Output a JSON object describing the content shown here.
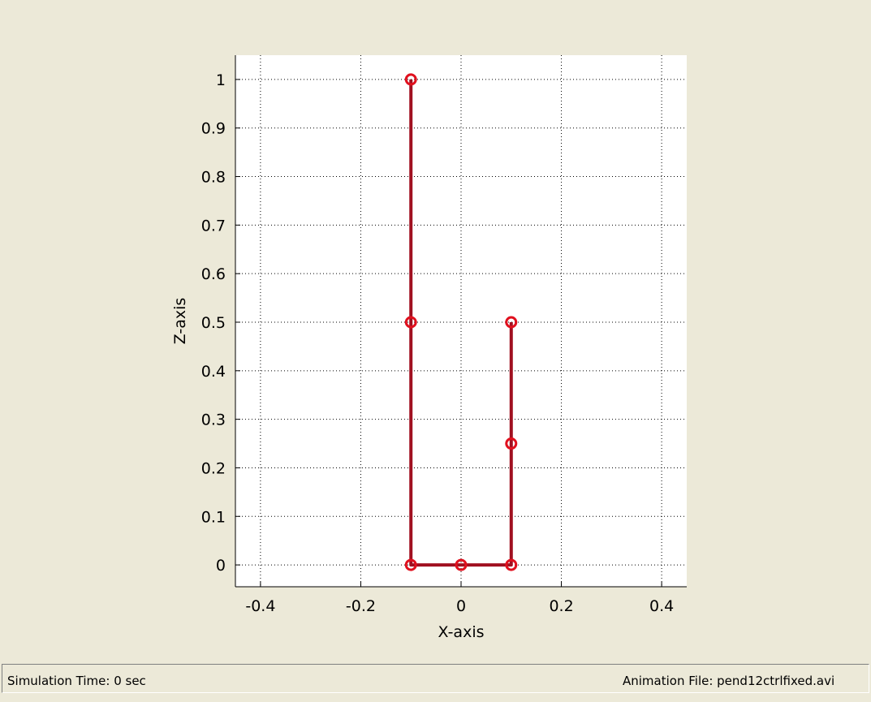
{
  "window": {
    "background_color": "#ECE9D8"
  },
  "status_bar": {
    "simulation_time": "Simulation Time: 0 sec",
    "animation_file": "Animation File: pend12ctrlfixed.avi"
  },
  "chart_data": {
    "type": "line",
    "title": "",
    "xlabel": "X-axis",
    "ylabel": "Z-axis",
    "xlim": [
      -0.45,
      0.45
    ],
    "ylim": [
      -0.045,
      1.05
    ],
    "xticks": [
      -0.4,
      -0.2,
      0,
      0.2,
      0.4
    ],
    "xtick_labels": [
      "-0.4",
      "-0.2",
      "0",
      "0.2",
      "0.4"
    ],
    "yticks": [
      0,
      0.1,
      0.2,
      0.3,
      0.4,
      0.5,
      0.6,
      0.7,
      0.8,
      0.9,
      1
    ],
    "ytick_labels": [
      "0",
      "0.1",
      "0.2",
      "0.3",
      "0.4",
      "0.5",
      "0.6",
      "0.7",
      "0.8",
      "0.9",
      "1"
    ],
    "grid": true,
    "grid_style": "dotted",
    "line_color": "#A01020",
    "marker_color": "#E0101E",
    "series": [
      {
        "points": [
          {
            "x": -0.1,
            "y": 1.0
          },
          {
            "x": -0.1,
            "y": 0.5
          },
          {
            "x": -0.1,
            "y": 0.0
          },
          {
            "x": 0.0,
            "y": 0.0
          },
          {
            "x": 0.1,
            "y": 0.0
          },
          {
            "x": 0.1,
            "y": 0.25
          },
          {
            "x": 0.1,
            "y": 0.5
          }
        ]
      }
    ]
  }
}
